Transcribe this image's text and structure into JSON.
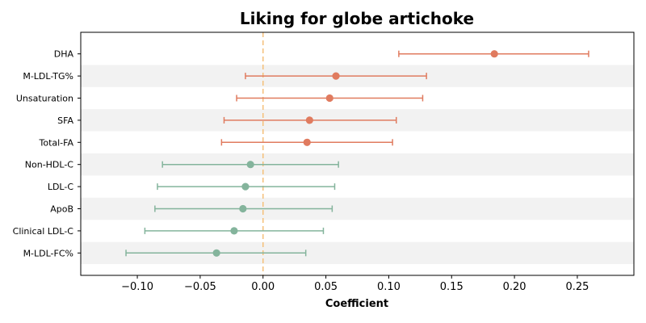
{
  "chart_data": {
    "type": "forest",
    "title": "Liking for globe artichoke",
    "xlabel": "Coefficient",
    "ylabel": "",
    "xlim": [
      -0.145,
      0.295
    ],
    "x_ticks": [
      -0.1,
      -0.05,
      0.0,
      0.05,
      0.1,
      0.15,
      0.2,
      0.25
    ],
    "x_tick_labels": [
      "−0.10",
      "−0.05",
      "0.00",
      "0.05",
      "0.10",
      "0.15",
      "0.20",
      "0.25"
    ],
    "reference_line": 0.0,
    "grid": false,
    "alternating_row_shading": true,
    "colors": {
      "positive": "#e07b5f",
      "negative": "#84b49c",
      "reference": "#f5c07a",
      "shade": "#f2f2f2"
    },
    "rows": [
      {
        "label": "DHA",
        "estimate": 0.184,
        "ci_low": 0.108,
        "ci_high": 0.259,
        "group": "positive"
      },
      {
        "label": "M-LDL-TG%",
        "estimate": 0.058,
        "ci_low": -0.014,
        "ci_high": 0.13,
        "group": "positive"
      },
      {
        "label": "Unsaturation",
        "estimate": 0.053,
        "ci_low": -0.021,
        "ci_high": 0.127,
        "group": "positive"
      },
      {
        "label": "SFA",
        "estimate": 0.037,
        "ci_low": -0.031,
        "ci_high": 0.106,
        "group": "positive"
      },
      {
        "label": "Total-FA",
        "estimate": 0.035,
        "ci_low": -0.033,
        "ci_high": 0.103,
        "group": "positive"
      },
      {
        "label": "Non-HDL-C",
        "estimate": -0.01,
        "ci_low": -0.08,
        "ci_high": 0.06,
        "group": "negative"
      },
      {
        "label": "LDL-C",
        "estimate": -0.014,
        "ci_low": -0.084,
        "ci_high": 0.057,
        "group": "negative"
      },
      {
        "label": "ApoB",
        "estimate": -0.016,
        "ci_low": -0.086,
        "ci_high": 0.055,
        "group": "negative"
      },
      {
        "label": "Clinical LDL-C",
        "estimate": -0.023,
        "ci_low": -0.094,
        "ci_high": 0.048,
        "group": "negative"
      },
      {
        "label": "M-LDL-FC%",
        "estimate": -0.037,
        "ci_low": -0.109,
        "ci_high": 0.034,
        "group": "negative"
      }
    ]
  }
}
